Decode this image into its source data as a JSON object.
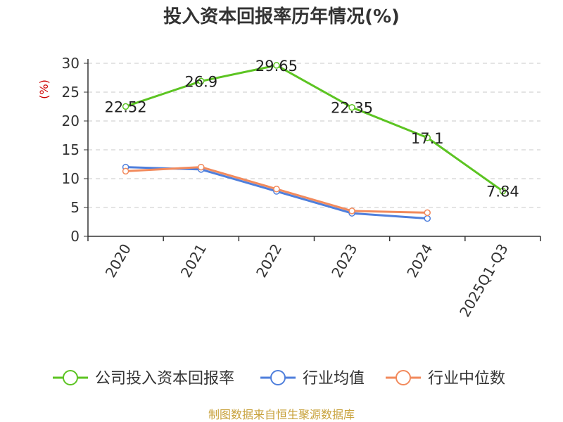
{
  "chart_data": {
    "type": "line",
    "title": "投入资本回报率历年情况(%)",
    "ylabel": "(%)",
    "xlabel": "",
    "categories": [
      "2020",
      "2021",
      "2022",
      "2023",
      "2024",
      "2025Q1-Q3"
    ],
    "ylim": [
      0,
      30
    ],
    "yticks": [
      0,
      5,
      10,
      15,
      20,
      25,
      30
    ],
    "grid": "horizontal-dashed",
    "legend_position": "bottom",
    "series": [
      {
        "name": "公司投入资本回报率",
        "color": "#5cc422",
        "values": [
          22.52,
          26.9,
          29.65,
          22.35,
          17.1,
          7.84
        ],
        "labels": [
          "22.52",
          "26.9",
          "29.65",
          "22.35",
          "17.1",
          "7.84"
        ]
      },
      {
        "name": "行业均值",
        "color": "#4f7fdc",
        "values": [
          12.0,
          11.6,
          7.8,
          4.0,
          3.1,
          null
        ]
      },
      {
        "name": "行业中位数",
        "color": "#f28a5c",
        "values": [
          11.3,
          12.0,
          8.2,
          4.4,
          4.1,
          null
        ]
      }
    ]
  },
  "footer": {
    "source": "制图数据来自恒生聚源数据库"
  }
}
